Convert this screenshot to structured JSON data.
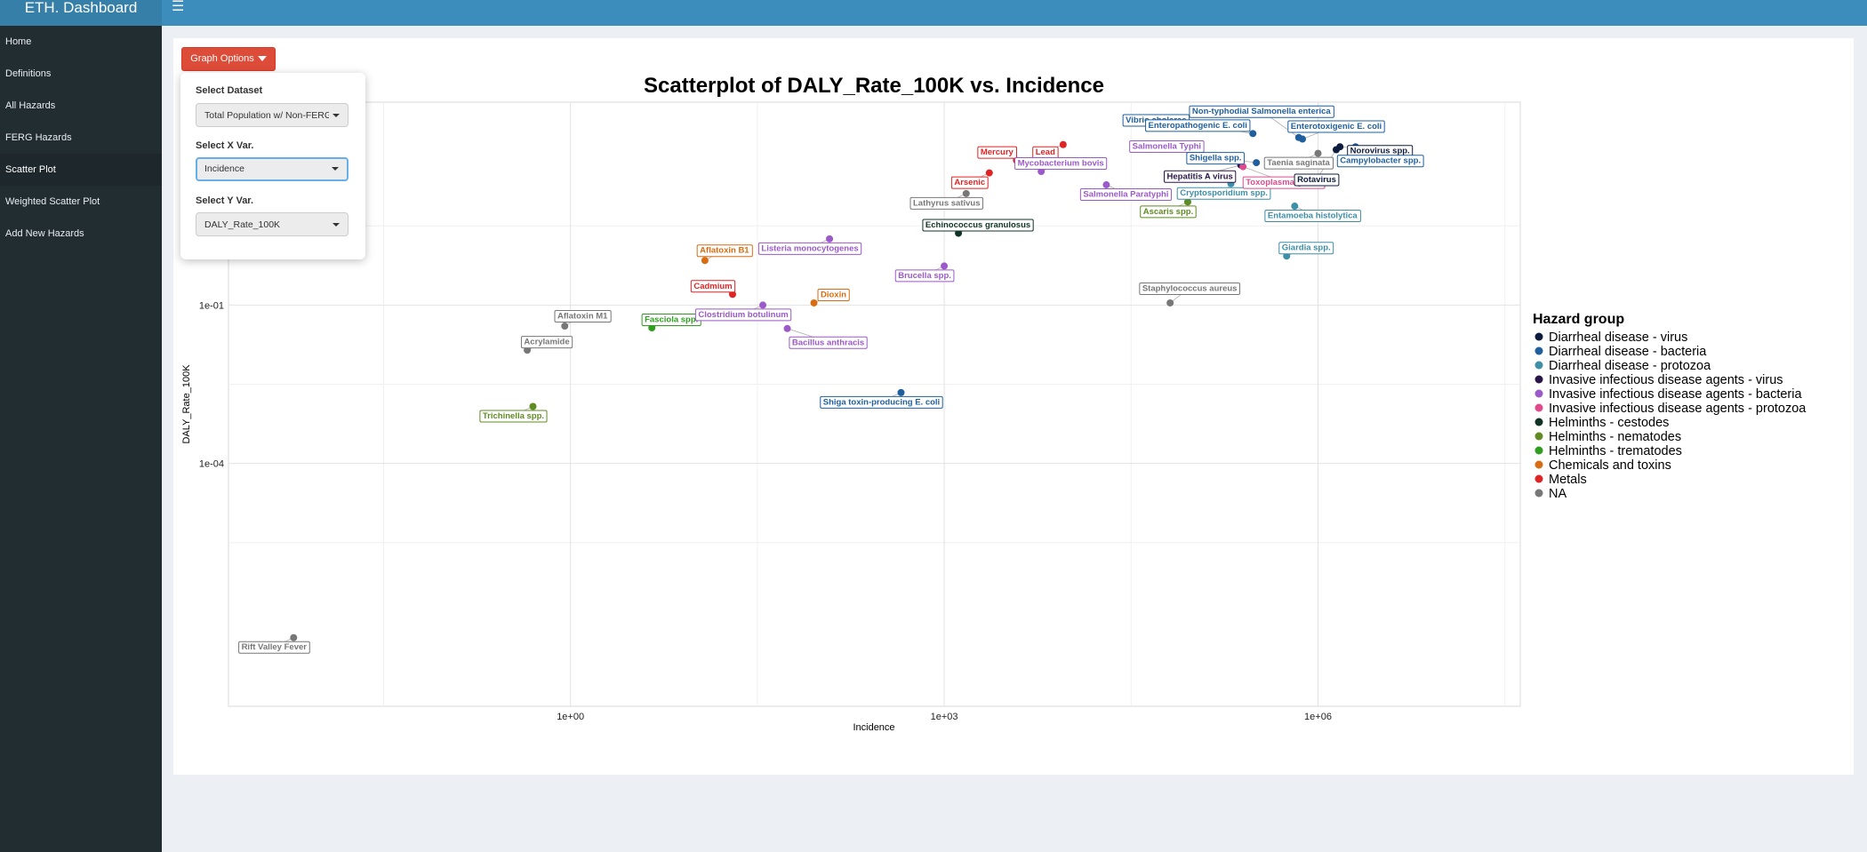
{
  "header": {
    "brand": "ETH. Dashboard",
    "menu_icon": "hamburger-icon"
  },
  "sidebar": {
    "items": [
      {
        "label": "Home"
      },
      {
        "label": "Definitions"
      },
      {
        "label": "All Hazards"
      },
      {
        "label": "FERG Hazards"
      },
      {
        "label": "Scatter Plot",
        "active": true
      },
      {
        "label": "Weighted Scatter Plot"
      },
      {
        "label": "Add New Hazards"
      }
    ]
  },
  "graph_options": {
    "button_label": "Graph Options",
    "dataset": {
      "label": "Select Dataset",
      "value": "Total Population w/ Non-FERG"
    },
    "x_var": {
      "label": "Select X Var.",
      "value": "Incidence"
    },
    "y_var": {
      "label": "Select Y Var.",
      "value": "DALY_Rate_100K"
    }
  },
  "chart_data": {
    "type": "scatter",
    "title": "Scatterplot of  DALY_Rate_100K vs. Incidence",
    "xlabel": "Incidence",
    "ylabel": "DALY_Rate_100K",
    "x_scale": "log10",
    "y_scale": "log10",
    "xlim": [
      0.0018,
      42000000
    ],
    "ylim": [
      2.5e-09,
      700
    ],
    "x_ticks": [
      {
        "value": 1,
        "label": "1e+00"
      },
      {
        "value": 1000,
        "label": "1e+03"
      },
      {
        "value": 1000000,
        "label": "1e+06"
      }
    ],
    "y_ticks": [
      {
        "value": 0.1,
        "label": "1e-01"
      },
      {
        "value": 0.0001,
        "label": "1e-04"
      }
    ],
    "grid": true,
    "legend": {
      "title": "Hazard group",
      "placement": "right",
      "groups": [
        {
          "name": "Diarrheal disease - virus",
          "color": "#0d1b3e"
        },
        {
          "name": "Diarrheal disease - bacteria",
          "color": "#1f5f9e"
        },
        {
          "name": "Diarrheal disease - protozoa",
          "color": "#3d8ea7"
        },
        {
          "name": "Invasive infectious disease agents - virus",
          "color": "#2a1548"
        },
        {
          "name": "Invasive infectious disease agents - bacteria",
          "color": "#9b59c9"
        },
        {
          "name": "Invasive infectious disease agents - protozoa",
          "color": "#e04a8c"
        },
        {
          "name": "Helminths - cestodes",
          "color": "#0f3324"
        },
        {
          "name": "Helminths - nematodes",
          "color": "#5f8b22"
        },
        {
          "name": "Helminths - trematodes",
          "color": "#2f9e1f"
        },
        {
          "name": "Chemicals and toxins",
          "color": "#d86c10"
        },
        {
          "name": "Metals",
          "color": "#e02424"
        },
        {
          "name": "NA",
          "color": "#777777"
        }
      ]
    },
    "points": [
      {
        "name": "Rift Valley Fever",
        "group": "NA",
        "x": 0.006,
        "y": 5e-08
      },
      {
        "name": "Trichinella spp.",
        "group": "Helminths - nematodes",
        "x": 0.5,
        "y": 0.0012
      },
      {
        "name": "Acrylamide",
        "group": "NA",
        "x": 0.45,
        "y": 0.014
      },
      {
        "name": "Aflatoxin M1",
        "group": "NA",
        "x": 0.9,
        "y": 0.04
      },
      {
        "name": "Fasciola spp.",
        "group": "Helminths - trematodes",
        "x": 4.5,
        "y": 0.037
      },
      {
        "name": "Aflatoxin B1",
        "group": "Chemicals and toxins",
        "x": 12,
        "y": 0.7
      },
      {
        "name": "Cadmium",
        "group": "Metals",
        "x": 20,
        "y": 0.16
      },
      {
        "name": "Clostridium botulinum",
        "group": "Invasive infectious disease agents - bacteria",
        "x": 35,
        "y": 0.1
      },
      {
        "name": "Bacillus anthracis",
        "group": "Invasive infectious disease agents - bacteria",
        "x": 55,
        "y": 0.036
      },
      {
        "name": "Dioxin",
        "group": "Chemicals and toxins",
        "x": 90,
        "y": 0.11
      },
      {
        "name": "Listeria monocytogenes",
        "group": "Invasive infectious disease agents - bacteria",
        "x": 120,
        "y": 1.8
      },
      {
        "name": "Shiga toxin-producing E. coli",
        "group": "Diarrheal disease - bacteria",
        "x": 450,
        "y": 0.0022
      },
      {
        "name": "Brucella spp.",
        "group": "Invasive infectious disease agents - bacteria",
        "x": 1000,
        "y": 0.55
      },
      {
        "name": "Echinococcus granulosus",
        "group": "Helminths - cestodes",
        "x": 1300,
        "y": 2.3
      },
      {
        "name": "Lathyrus sativus",
        "group": "NA",
        "x": 1500,
        "y": 13
      },
      {
        "name": "Arsenic",
        "group": "Metals",
        "x": 2300,
        "y": 32
      },
      {
        "name": "Mercury",
        "group": "Metals",
        "x": 3800,
        "y": 55
      },
      {
        "name": "Lead",
        "group": "Metals",
        "x": 9000,
        "y": 110
      },
      {
        "name": "Mycobacterium bovis",
        "group": "Invasive infectious disease agents - bacteria",
        "x": 6000,
        "y": 34
      },
      {
        "name": "Salmonella Paratyphi",
        "group": "Invasive infectious disease agents - bacteria",
        "x": 20000,
        "y": 19
      },
      {
        "name": "Ascaris spp.",
        "group": "Helminths - nematodes",
        "x": 90000,
        "y": 9
      },
      {
        "name": "Cryptosporidium spp.",
        "group": "Diarrheal disease - protozoa",
        "x": 200000,
        "y": 20
      },
      {
        "name": "Staphylococcus aureus",
        "group": "NA",
        "x": 65000,
        "y": 0.11
      },
      {
        "name": "Salmonella Typhi",
        "group": "Invasive infectious disease agents - bacteria",
        "x": 100000,
        "y": 71
      },
      {
        "name": "Vibrio cholerae",
        "group": "Diarrheal disease - bacteria",
        "x": 100000,
        "y": 260
      },
      {
        "name": "Enteropathogenic E. coli",
        "group": "Diarrheal disease - bacteria",
        "x": 300000,
        "y": 178
      },
      {
        "name": "Non-typhodial Salmonella enterica",
        "group": "Diarrheal disease - bacteria",
        "x": 700000,
        "y": 150
      },
      {
        "name": "Enterotoxigenic E. coli",
        "group": "Diarrheal disease - bacteria",
        "x": 750000,
        "y": 140
      },
      {
        "name": "Shigella spp.",
        "group": "Diarrheal disease - bacteria",
        "x": 320000,
        "y": 50
      },
      {
        "name": "Hepatitis A virus",
        "group": "Invasive infectious disease agents - virus",
        "x": 240000,
        "y": 45
      },
      {
        "name": "Toxoplasma gondii",
        "group": "Invasive infectious disease agents - protozoa",
        "x": 250000,
        "y": 42
      },
      {
        "name": "Taenia saginata",
        "group": "NA",
        "x": 1000000,
        "y": 75
      },
      {
        "name": "Rotavirus",
        "group": "Diarrheal disease - virus",
        "x": 1400000,
        "y": 88
      },
      {
        "name": "Norovirus spp.",
        "group": "Diarrheal disease - virus",
        "x": 1500000,
        "y": 100
      },
      {
        "name": "Campylobacter spp.",
        "group": "Diarrheal disease - bacteria",
        "x": 2000000,
        "y": 100
      },
      {
        "name": "Entamoeba histolytica",
        "group": "Diarrheal disease - protozoa",
        "x": 650000,
        "y": 7.5
      },
      {
        "name": "Giardia spp.",
        "group": "Diarrheal disease - protozoa",
        "x": 560000,
        "y": 0.85
      }
    ]
  }
}
